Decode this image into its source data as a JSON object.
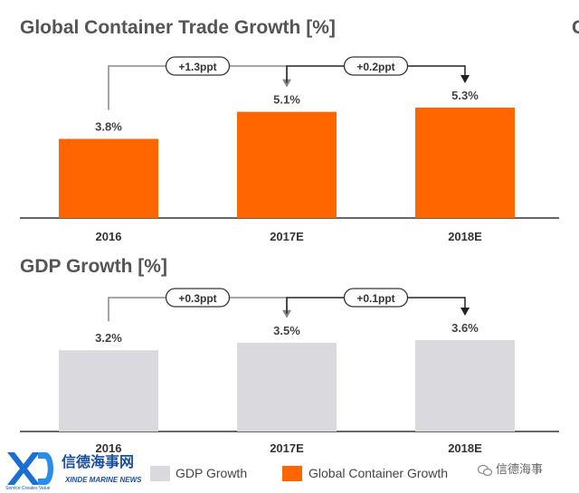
{
  "cut_char": "G",
  "legend": {
    "gdp_label": "GDP Growth",
    "container_label": "Global Container Growth"
  },
  "logo": {
    "chinese": "信德海事网",
    "english": "XINDE MARINE NEWS",
    "slogan": "Service Creates Value"
  },
  "wechat": {
    "text": "信德海事",
    "icon": "wechat-icon"
  },
  "colors": {
    "container": "#ff6600",
    "gdp": "#d9d9de",
    "axis": "#333333"
  },
  "chart_data": [
    {
      "type": "bar",
      "title": "Global Container Trade Growth [%]",
      "categories": [
        "2016",
        "2017E",
        "2018E"
      ],
      "values": [
        3.8,
        5.1,
        5.3
      ],
      "value_labels": [
        "3.8%",
        "5.1%",
        "5.3%"
      ],
      "ylim": [
        0,
        5.3
      ],
      "color": "#ff6600",
      "annotations": [
        {
          "from": 0,
          "to": 1,
          "label": "+1.3ppt"
        },
        {
          "from": 1,
          "to": 2,
          "label": "+0.2ppt"
        }
      ]
    },
    {
      "type": "bar",
      "title": "GDP Growth [%]",
      "categories": [
        "2016",
        "2017E",
        "2018E"
      ],
      "values": [
        3.2,
        3.5,
        3.6
      ],
      "value_labels": [
        "3.2%",
        "3.5%",
        "3.6%"
      ],
      "ylim": [
        0,
        3.6
      ],
      "color": "#d9d9de",
      "annotations": [
        {
          "from": 0,
          "to": 1,
          "label": "+0.3ppt"
        },
        {
          "from": 1,
          "to": 2,
          "label": "+0.1ppt"
        }
      ]
    }
  ]
}
